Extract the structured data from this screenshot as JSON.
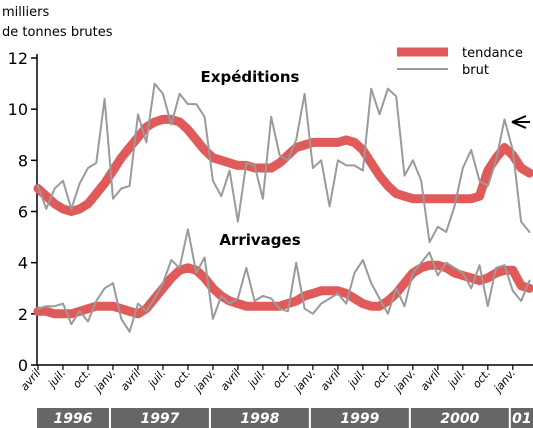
{
  "chart_data": {
    "type": "line",
    "y_axis_label": [
      "milliers",
      "de tonnes brutes"
    ],
    "categories": [
      "avril",
      null,
      null,
      "juil.",
      null,
      null,
      "oct.",
      null,
      null,
      "janv.",
      null,
      null,
      "avril",
      null,
      null,
      "juil.",
      null,
      null,
      "oct.",
      null,
      null,
      "janv.",
      null,
      null,
      "avril",
      null,
      null,
      "juil.",
      null,
      null,
      "oct.",
      null,
      null,
      "janv.",
      null,
      null,
      "avril",
      null,
      null,
      "juil.",
      null,
      null,
      "oct.",
      null,
      null,
      "janv.",
      null,
      null,
      "avril",
      null,
      null,
      "juil.",
      null,
      null,
      "oct.",
      null,
      null,
      "janv.",
      null,
      null
    ],
    "year_groups": [
      {
        "label": "1996",
        "months": 9
      },
      {
        "label": "1997",
        "months": 12
      },
      {
        "label": "1998",
        "months": 12
      },
      {
        "label": "1999",
        "months": 12
      },
      {
        "label": "2000",
        "months": 12
      },
      {
        "label": "01",
        "months": 3
      }
    ],
    "legend": [
      {
        "name": "tendance",
        "color": "#e05a5a"
      },
      {
        "name": "brut",
        "color": "#9a9a9a"
      }
    ],
    "series": [
      {
        "name": "Expéditions",
        "tendance": [
          6.9,
          6.6,
          6.3,
          6.1,
          6.0,
          6.1,
          6.3,
          6.7,
          7.1,
          7.6,
          8.1,
          8.5,
          8.9,
          9.3,
          9.5,
          9.6,
          9.6,
          9.5,
          9.2,
          8.8,
          8.4,
          8.1,
          8.0,
          7.9,
          7.8,
          7.8,
          7.7,
          7.7,
          7.7,
          7.9,
          8.2,
          8.5,
          8.6,
          8.7,
          8.7,
          8.7,
          8.7,
          8.8,
          8.7,
          8.4,
          7.9,
          7.4,
          7.0,
          6.7,
          6.6,
          6.5,
          6.5,
          6.5,
          6.5,
          6.5,
          6.5,
          6.5,
          6.5,
          6.6,
          7.6,
          8.1,
          8.5,
          8.2,
          7.7,
          7.5
        ],
        "brut": [
          7.0,
          6.1,
          6.9,
          7.2,
          6.1,
          7.1,
          7.7,
          7.9,
          10.4,
          6.5,
          6.9,
          7.0,
          9.8,
          8.7,
          11.0,
          10.6,
          9.4,
          10.6,
          10.2,
          10.2,
          9.7,
          7.2,
          6.6,
          7.6,
          5.6,
          7.9,
          7.8,
          6.5,
          9.7,
          8.2,
          8.0,
          8.8,
          10.6,
          7.7,
          8.0,
          6.2,
          8.0,
          7.8,
          7.8,
          7.6,
          10.8,
          9.8,
          10.8,
          10.5,
          7.4,
          8.0,
          7.2,
          4.8,
          5.4,
          5.2,
          6.2,
          7.7,
          8.4,
          7.2,
          7.0,
          8.0,
          9.6,
          8.4,
          5.6,
          5.2
        ]
      },
      {
        "name": "Arrivages",
        "tendance": [
          2.1,
          2.1,
          2.0,
          2.0,
          2.0,
          2.1,
          2.2,
          2.3,
          2.3,
          2.3,
          2.2,
          2.1,
          2.0,
          2.2,
          2.6,
          3.0,
          3.4,
          3.7,
          3.8,
          3.7,
          3.4,
          3.0,
          2.7,
          2.5,
          2.4,
          2.3,
          2.3,
          2.3,
          2.3,
          2.3,
          2.4,
          2.5,
          2.7,
          2.8,
          2.9,
          2.9,
          2.9,
          2.8,
          2.6,
          2.4,
          2.3,
          2.3,
          2.5,
          2.8,
          3.2,
          3.6,
          3.8,
          3.9,
          3.9,
          3.8,
          3.6,
          3.5,
          3.4,
          3.3,
          3.4,
          3.6,
          3.7,
          3.7,
          3.1,
          3.0
        ],
        "brut": [
          2.2,
          2.3,
          2.3,
          2.4,
          1.6,
          2.1,
          1.7,
          2.5,
          3.0,
          3.2,
          1.8,
          1.3,
          2.4,
          2.1,
          2.6,
          3.2,
          4.1,
          3.8,
          5.3,
          3.6,
          4.2,
          1.8,
          2.7,
          2.4,
          2.6,
          3.8,
          2.5,
          2.7,
          2.6,
          2.2,
          2.1,
          4.0,
          2.2,
          2.0,
          2.4,
          2.6,
          2.8,
          2.4,
          3.6,
          4.1,
          3.2,
          2.6,
          2.0,
          3.0,
          2.3,
          3.6,
          4.0,
          4.4,
          3.5,
          4.0,
          3.8,
          3.6,
          3.0,
          3.9,
          2.3,
          3.8,
          3.9,
          2.9,
          2.5,
          3.3
        ]
      }
    ],
    "ylim": [
      0,
      12
    ],
    "yticks": [
      0,
      2,
      4,
      6,
      8,
      10,
      12
    ]
  }
}
